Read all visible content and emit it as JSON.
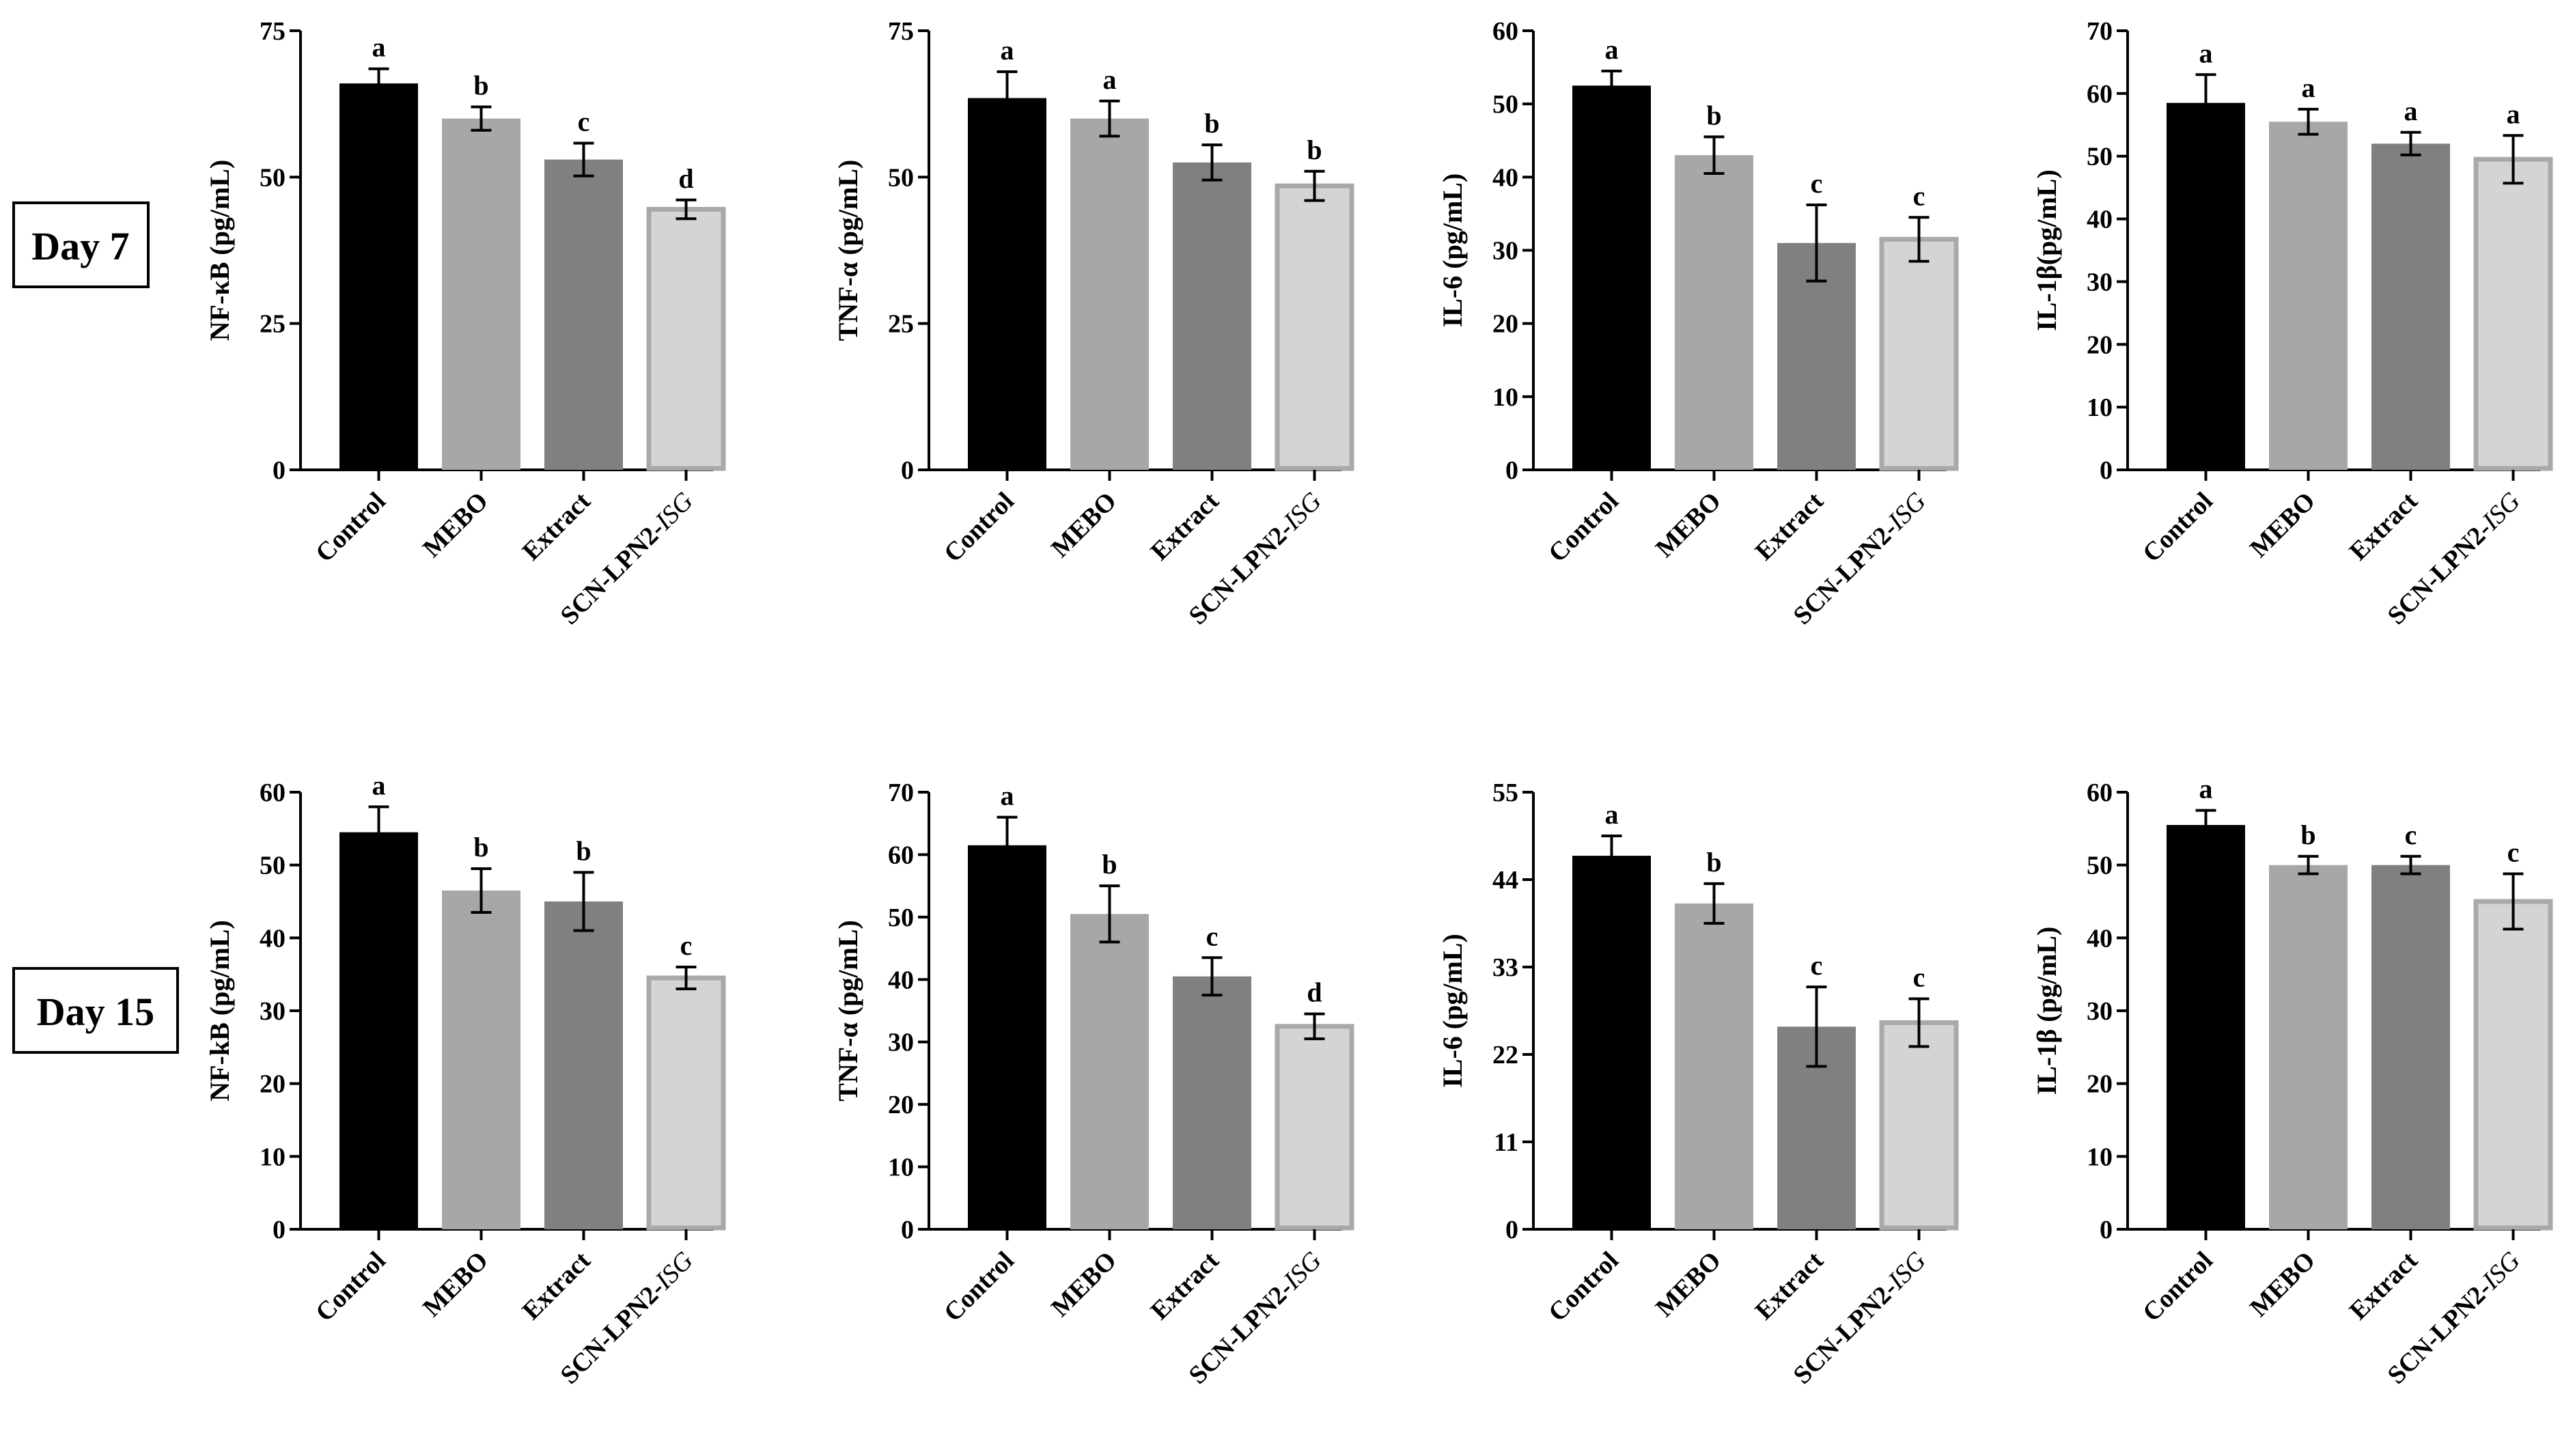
{
  "row_labels": [
    "Day 7",
    "Day 15"
  ],
  "colors": {
    "Control": "#000000",
    "MEBO": "#a7a7a9",
    "Extract": "#808080",
    "SCN-LPN2-ISG": "#d4d4d4",
    "SCN-LPN2-ISG_border": "#a9a9a9",
    "axis": "#000000"
  },
  "chart_data": [
    {
      "type": "bar",
      "panel": "day7-nfkb",
      "ylabel": "NF-κB (pg/mL)",
      "categories": [
        [
          "Control"
        ],
        [
          "MEBO"
        ],
        [
          "Extract"
        ],
        [
          "SCN-LPN2-",
          "ISG"
        ]
      ],
      "values": [
        66,
        60,
        53,
        44.5
      ],
      "errors": [
        2.5,
        2,
        2.8,
        1.6
      ],
      "letters": [
        "a",
        "b",
        "c",
        "d"
      ],
      "ylim": [
        0,
        75
      ],
      "yticks": [
        0,
        25,
        50,
        75
      ]
    },
    {
      "type": "bar",
      "panel": "day7-tnfa",
      "ylabel": "TNF-α (pg/mL)",
      "categories": [
        [
          "Control"
        ],
        [
          "MEBO"
        ],
        [
          "Extract"
        ],
        [
          "SCN-LPN2-",
          "ISG"
        ]
      ],
      "values": [
        63.5,
        60,
        52.5,
        48.5
      ],
      "errors": [
        4.5,
        3,
        3,
        2.5
      ],
      "letters": [
        "a",
        "a",
        "b",
        "b"
      ],
      "ylim": [
        0,
        75
      ],
      "yticks": [
        0,
        25,
        50,
        75
      ]
    },
    {
      "type": "bar",
      "panel": "day7-il6",
      "ylabel": "IL-6 (pg/mL)",
      "categories": [
        [
          "Control"
        ],
        [
          "MEBO"
        ],
        [
          "Extract"
        ],
        [
          "SCN-LPN2-",
          "ISG"
        ]
      ],
      "values": [
        52.5,
        43,
        31,
        31.5
      ],
      "errors": [
        2,
        2.5,
        5.2,
        3
      ],
      "letters": [
        "a",
        "b",
        "c",
        "c"
      ],
      "ylim": [
        0,
        60
      ],
      "yticks": [
        0,
        10,
        20,
        30,
        40,
        50,
        60
      ]
    },
    {
      "type": "bar",
      "panel": "day7-il1b",
      "ylabel": "IL-1β(pg/mL)",
      "categories": [
        [
          "Control"
        ],
        [
          "MEBO"
        ],
        [
          "Extract"
        ],
        [
          "SCN-LPN2-",
          "ISG"
        ]
      ],
      "values": [
        58.5,
        55.5,
        52,
        49.5
      ],
      "errors": [
        4.5,
        2,
        1.8,
        3.8
      ],
      "letters": [
        "a",
        "a",
        "a",
        "a"
      ],
      "ylim": [
        0,
        70
      ],
      "yticks": [
        0,
        10,
        20,
        30,
        40,
        50,
        60,
        70
      ]
    },
    {
      "type": "bar",
      "panel": "day15-nfkb",
      "ylabel": "NF-kB (pg/mL)",
      "categories": [
        [
          "Control"
        ],
        [
          "MEBO"
        ],
        [
          "Extract"
        ],
        [
          "SCN-LPN2-",
          "ISG"
        ]
      ],
      "values": [
        54.5,
        46.5,
        45,
        34.5
      ],
      "errors": [
        3.5,
        3,
        4,
        1.5
      ],
      "letters": [
        "a",
        "b",
        "b",
        "c"
      ],
      "ylim": [
        0,
        60
      ],
      "yticks": [
        0,
        10,
        20,
        30,
        40,
        50,
        60
      ]
    },
    {
      "type": "bar",
      "panel": "day15-tnfa",
      "ylabel": "TNF-α (pg/mL)",
      "categories": [
        [
          "Control"
        ],
        [
          "MEBO"
        ],
        [
          "Extract"
        ],
        [
          "SCN-LPN2-",
          "ISG"
        ]
      ],
      "values": [
        61.5,
        50.5,
        40.5,
        32.5
      ],
      "errors": [
        4.5,
        4.5,
        3,
        2
      ],
      "letters": [
        "a",
        "b",
        "c",
        "d"
      ],
      "ylim": [
        0,
        70
      ],
      "yticks": [
        0,
        10,
        20,
        30,
        40,
        50,
        60,
        70
      ]
    },
    {
      "type": "bar",
      "panel": "day15-il6",
      "ylabel": "IL-6 (pg/mL)",
      "categories": [
        [
          "Control"
        ],
        [
          "MEBO"
        ],
        [
          "Extract"
        ],
        [
          "SCN-LPN2-",
          "ISG"
        ]
      ],
      "values": [
        47,
        41,
        25.5,
        26
      ],
      "errors": [
        2.5,
        2.5,
        5,
        3
      ],
      "letters": [
        "a",
        "b",
        "c",
        "c"
      ],
      "ylim": [
        0,
        55
      ],
      "yticks": [
        0,
        11,
        22,
        33,
        44,
        55
      ]
    },
    {
      "type": "bar",
      "panel": "day15-il1b",
      "ylabel": "IL-1β (pg/mL)",
      "categories": [
        [
          "Control"
        ],
        [
          "MEBO"
        ],
        [
          "Extract"
        ],
        [
          "SCN-LPN2-",
          "ISG"
        ]
      ],
      "values": [
        55.5,
        50,
        50,
        45
      ],
      "errors": [
        2,
        1.2,
        1.2,
        3.8
      ],
      "letters": [
        "a",
        "b",
        "c",
        "c"
      ],
      "ylim": [
        0,
        60
      ],
      "yticks": [
        0,
        10,
        20,
        30,
        40,
        50,
        60
      ]
    }
  ]
}
